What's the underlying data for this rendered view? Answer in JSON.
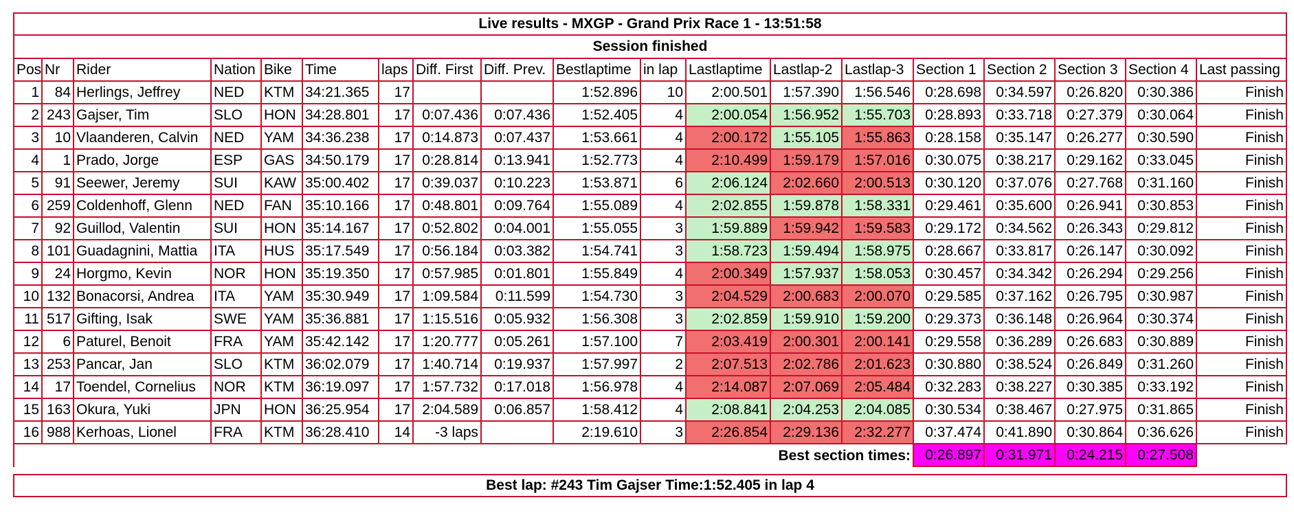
{
  "title": "Live results - MXGP - Grand Prix Race 1 - 13:51:58",
  "status": "Session finished",
  "columns": [
    "Pos",
    "Nr",
    "Rider",
    "Nation",
    "Bike",
    "Time",
    "laps",
    "Diff. First",
    "Diff. Prev.",
    "Bestlaptime",
    "in lap",
    "Lastlaptime",
    "Lastlap-2",
    "Lastlap-3",
    "Section 1",
    "Section 2",
    "Section 3",
    "Section 4",
    "Last passing"
  ],
  "rows": [
    {
      "pos": "1",
      "nr": "84",
      "rider": "Herlings, Jeffrey",
      "nation": "NED",
      "bike": "KTM",
      "time": "34:21.365",
      "laps": "17",
      "diff_first": "",
      "diff_prev": "",
      "best": "1:52.896",
      "in_lap": "10",
      "last": "2:00.501",
      "last2": "1:57.390",
      "last3": "1:56.546",
      "s1": "0:28.698",
      "s2": "0:34.597",
      "s3": "0:26.820",
      "s4": "0:30.386",
      "passing": "Finish",
      "colors": [
        "",
        "",
        ""
      ]
    },
    {
      "pos": "2",
      "nr": "243",
      "rider": "Gajser, Tim",
      "nation": "SLO",
      "bike": "HON",
      "time": "34:28.801",
      "laps": "17",
      "diff_first": "0:07.436",
      "diff_prev": "0:07.436",
      "best": "1:52.405",
      "in_lap": "4",
      "last": "2:00.054",
      "last2": "1:56.952",
      "last3": "1:55.703",
      "s1": "0:28.893",
      "s2": "0:33.718",
      "s3": "0:27.379",
      "s4": "0:30.064",
      "passing": "Finish",
      "colors": [
        "green",
        "green",
        "green"
      ]
    },
    {
      "pos": "3",
      "nr": "10",
      "rider": "Vlaanderen, Calvin",
      "nation": "NED",
      "bike": "YAM",
      "time": "34:36.238",
      "laps": "17",
      "diff_first": "0:14.873",
      "diff_prev": "0:07.437",
      "best": "1:53.661",
      "in_lap": "4",
      "last": "2:00.172",
      "last2": "1:55.105",
      "last3": "1:55.863",
      "s1": "0:28.158",
      "s2": "0:35.147",
      "s3": "0:26.277",
      "s4": "0:30.590",
      "passing": "Finish",
      "colors": [
        "red",
        "green",
        "red"
      ]
    },
    {
      "pos": "4",
      "nr": "1",
      "rider": "Prado, Jorge",
      "nation": "ESP",
      "bike": "GAS",
      "time": "34:50.179",
      "laps": "17",
      "diff_first": "0:28.814",
      "diff_prev": "0:13.941",
      "best": "1:52.773",
      "in_lap": "4",
      "last": "2:10.499",
      "last2": "1:59.179",
      "last3": "1:57.016",
      "s1": "0:30.075",
      "s2": "0:38.217",
      "s3": "0:29.162",
      "s4": "0:33.045",
      "passing": "Finish",
      "colors": [
        "red",
        "red",
        "red"
      ]
    },
    {
      "pos": "5",
      "nr": "91",
      "rider": "Seewer, Jeremy",
      "nation": "SUI",
      "bike": "KAW",
      "time": "35:00.402",
      "laps": "17",
      "diff_first": "0:39.037",
      "diff_prev": "0:10.223",
      "best": "1:53.871",
      "in_lap": "6",
      "last": "2:06.124",
      "last2": "2:02.660",
      "last3": "2:00.513",
      "s1": "0:30.120",
      "s2": "0:37.076",
      "s3": "0:27.768",
      "s4": "0:31.160",
      "passing": "Finish",
      "colors": [
        "green",
        "red",
        "red"
      ]
    },
    {
      "pos": "6",
      "nr": "259",
      "rider": "Coldenhoff, Glenn",
      "nation": "NED",
      "bike": "FAN",
      "time": "35:10.166",
      "laps": "17",
      "diff_first": "0:48.801",
      "diff_prev": "0:09.764",
      "best": "1:55.089",
      "in_lap": "4",
      "last": "2:02.855",
      "last2": "1:59.878",
      "last3": "1:58.331",
      "s1": "0:29.461",
      "s2": "0:35.600",
      "s3": "0:26.941",
      "s4": "0:30.853",
      "passing": "Finish",
      "colors": [
        "green",
        "green",
        "green"
      ]
    },
    {
      "pos": "7",
      "nr": "92",
      "rider": "Guillod, Valentin",
      "nation": "SUI",
      "bike": "HON",
      "time": "35:14.167",
      "laps": "17",
      "diff_first": "0:52.802",
      "diff_prev": "0:04.001",
      "best": "1:55.055",
      "in_lap": "3",
      "last": "1:59.889",
      "last2": "1:59.942",
      "last3": "1:59.583",
      "s1": "0:29.172",
      "s2": "0:34.562",
      "s3": "0:26.343",
      "s4": "0:29.812",
      "passing": "Finish",
      "colors": [
        "green",
        "red",
        "red"
      ]
    },
    {
      "pos": "8",
      "nr": "101",
      "rider": "Guadagnini, Mattia",
      "nation": "ITA",
      "bike": "HUS",
      "time": "35:17.549",
      "laps": "17",
      "diff_first": "0:56.184",
      "diff_prev": "0:03.382",
      "best": "1:54.741",
      "in_lap": "3",
      "last": "1:58.723",
      "last2": "1:59.494",
      "last3": "1:58.975",
      "s1": "0:28.667",
      "s2": "0:33.817",
      "s3": "0:26.147",
      "s4": "0:30.092",
      "passing": "Finish",
      "colors": [
        "green",
        "green",
        "green"
      ]
    },
    {
      "pos": "9",
      "nr": "24",
      "rider": "Horgmo, Kevin",
      "nation": "NOR",
      "bike": "HON",
      "time": "35:19.350",
      "laps": "17",
      "diff_first": "0:57.985",
      "diff_prev": "0:01.801",
      "best": "1:55.849",
      "in_lap": "4",
      "last": "2:00.349",
      "last2": "1:57.937",
      "last3": "1:58.053",
      "s1": "0:30.457",
      "s2": "0:34.342",
      "s3": "0:26.294",
      "s4": "0:29.256",
      "passing": "Finish",
      "colors": [
        "red",
        "green",
        "green"
      ]
    },
    {
      "pos": "10",
      "nr": "132",
      "rider": "Bonacorsi, Andrea",
      "nation": "ITA",
      "bike": "YAM",
      "time": "35:30.949",
      "laps": "17",
      "diff_first": "1:09.584",
      "diff_prev": "0:11.599",
      "best": "1:54.730",
      "in_lap": "3",
      "last": "2:04.529",
      "last2": "2:00.683",
      "last3": "2:00.070",
      "s1": "0:29.585",
      "s2": "0:37.162",
      "s3": "0:26.795",
      "s4": "0:30.987",
      "passing": "Finish",
      "colors": [
        "red",
        "red",
        "red"
      ]
    },
    {
      "pos": "11",
      "nr": "517",
      "rider": "Gifting, Isak",
      "nation": "SWE",
      "bike": "YAM",
      "time": "35:36.881",
      "laps": "17",
      "diff_first": "1:15.516",
      "diff_prev": "0:05.932",
      "best": "1:56.308",
      "in_lap": "3",
      "last": "2:02.859",
      "last2": "1:59.910",
      "last3": "1:59.200",
      "s1": "0:29.373",
      "s2": "0:36.148",
      "s3": "0:26.964",
      "s4": "0:30.374",
      "passing": "Finish",
      "colors": [
        "green",
        "green",
        "green"
      ]
    },
    {
      "pos": "12",
      "nr": "6",
      "rider": "Paturel, Benoit",
      "nation": "FRA",
      "bike": "YAM",
      "time": "35:42.142",
      "laps": "17",
      "diff_first": "1:20.777",
      "diff_prev": "0:05.261",
      "best": "1:57.100",
      "in_lap": "7",
      "last": "2:03.419",
      "last2": "2:00.301",
      "last3": "2:00.141",
      "s1": "0:29.558",
      "s2": "0:36.289",
      "s3": "0:26.683",
      "s4": "0:30.889",
      "passing": "Finish",
      "colors": [
        "red",
        "red",
        "red"
      ]
    },
    {
      "pos": "13",
      "nr": "253",
      "rider": "Pancar, Jan",
      "nation": "SLO",
      "bike": "KTM",
      "time": "36:02.079",
      "laps": "17",
      "diff_first": "1:40.714",
      "diff_prev": "0:19.937",
      "best": "1:57.997",
      "in_lap": "2",
      "last": "2:07.513",
      "last2": "2:02.786",
      "last3": "2:01.623",
      "s1": "0:30.880",
      "s2": "0:38.524",
      "s3": "0:26.849",
      "s4": "0:31.260",
      "passing": "Finish",
      "colors": [
        "red",
        "red",
        "red"
      ]
    },
    {
      "pos": "14",
      "nr": "17",
      "rider": "Toendel, Cornelius",
      "nation": "NOR",
      "bike": "KTM",
      "time": "36:19.097",
      "laps": "17",
      "diff_first": "1:57.732",
      "diff_prev": "0:17.018",
      "best": "1:56.978",
      "in_lap": "4",
      "last": "2:14.087",
      "last2": "2:07.069",
      "last3": "2:05.484",
      "s1": "0:32.283",
      "s2": "0:38.227",
      "s3": "0:30.385",
      "s4": "0:33.192",
      "passing": "Finish",
      "colors": [
        "red",
        "red",
        "red"
      ]
    },
    {
      "pos": "15",
      "nr": "163",
      "rider": "Okura, Yuki",
      "nation": "JPN",
      "bike": "HON",
      "time": "36:25.954",
      "laps": "17",
      "diff_first": "2:04.589",
      "diff_prev": "0:06.857",
      "best": "1:58.412",
      "in_lap": "4",
      "last": "2:08.841",
      "last2": "2:04.253",
      "last3": "2:04.085",
      "s1": "0:30.534",
      "s2": "0:38.467",
      "s3": "0:27.975",
      "s4": "0:31.865",
      "passing": "Finish",
      "colors": [
        "green",
        "green",
        "green"
      ]
    },
    {
      "pos": "16",
      "nr": "988",
      "rider": "Kerhoas, Lionel",
      "nation": "FRA",
      "bike": "KTM",
      "time": "36:28.410",
      "laps": "14",
      "diff_first": "-3 laps",
      "diff_prev": "",
      "best": "2:19.610",
      "in_lap": "3",
      "last": "2:26.854",
      "last2": "2:29.136",
      "last3": "2:32.277",
      "s1": "0:37.474",
      "s2": "0:41.890",
      "s3": "0:30.864",
      "s4": "0:36.626",
      "passing": "Finish",
      "colors": [
        "red",
        "red",
        "red"
      ]
    }
  ],
  "best_sections": {
    "label": "Best section times:",
    "values": [
      "0:26.897",
      "0:31.971",
      "0:24.215",
      "0:27.508"
    ]
  },
  "best_lap": "Best lap: #243 Tim Gajser Time:1:52.405 in lap 4",
  "colors": {
    "border": "#c8102e",
    "faster": "#c6efc6",
    "slower": "#f26f6f",
    "best_section": "#ff00ff"
  }
}
